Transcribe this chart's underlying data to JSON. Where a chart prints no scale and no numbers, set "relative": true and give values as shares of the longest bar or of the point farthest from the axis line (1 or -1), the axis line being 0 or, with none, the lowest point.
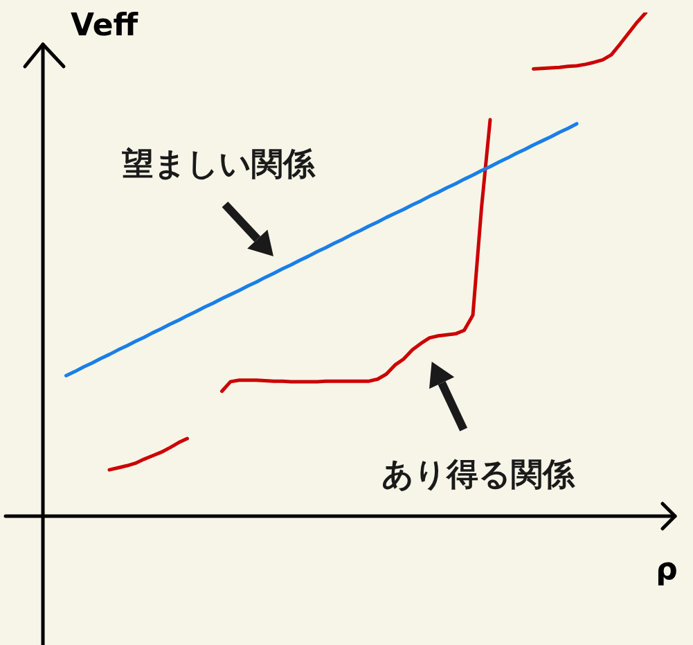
{
  "chart_data": {
    "type": "line",
    "relative": true,
    "xlabel": "ρ",
    "ylabel": "Veff",
    "legend": false,
    "marker": "none",
    "line_style": "solid",
    "categories": [
      null,
      null,
      null,
      null,
      null,
      null,
      null,
      null,
      null,
      null,
      null,
      null,
      null,
      null,
      null,
      null,
      null,
      null,
      null,
      null,
      null,
      null,
      null,
      null,
      null,
      null,
      null,
      null,
      null,
      null,
      null,
      null,
      null,
      null,
      null,
      null,
      null,
      null,
      null,
      null,
      null,
      null,
      null,
      null,
      null,
      null,
      null,
      null,
      null,
      null,
      null,
      null,
      null,
      null,
      null,
      null,
      null,
      null,
      null,
      null,
      null,
      null,
      null,
      null,
      null,
      null,
      null,
      null,
      null
    ],
    "series": [
      {
        "color": "#1a7fe6",
        "values": [
          null,
          0.279,
          0.287,
          0.296,
          0.304,
          0.313,
          0.321,
          0.33,
          0.338,
          0.347,
          0.355,
          0.364,
          0.372,
          0.381,
          0.389,
          0.398,
          0.406,
          0.415,
          0.423,
          0.432,
          0.44,
          0.448,
          0.457,
          0.465,
          0.474,
          0.482,
          0.491,
          0.499,
          0.508,
          0.516,
          0.525,
          0.533,
          0.542,
          0.55,
          0.559,
          0.567,
          0.576,
          0.584,
          0.593,
          0.601,
          0.609,
          0.618,
          0.626,
          0.635,
          0.643,
          0.652,
          0.66,
          0.669,
          0.677,
          0.686,
          0.694,
          0.703,
          0.711,
          0.72,
          0.728,
          0.737,
          0.745,
          0.753,
          0.762,
          0.77,
          0.779,
          null,
          null,
          null,
          null,
          null,
          null,
          null,
          null
        ]
      },
      {
        "color": "#cc0000",
        "values": [
          null,
          null,
          null,
          null,
          null,
          null,
          0.092,
          0.096,
          0.1,
          0.105,
          0.113,
          0.12,
          0.127,
          0.136,
          0.146,
          0.154,
          null,
          null,
          null,
          null,
          null,
          null,
          null,
          null,
          null,
          null,
          null,
          null,
          null,
          null,
          null,
          null,
          null,
          null,
          null,
          null,
          null,
          null,
          null,
          null,
          null,
          null,
          null,
          null,
          null,
          null,
          null,
          null,
          null,
          null,
          null,
          null,
          null,
          null,
          null,
          null,
          null,
          null,
          null,
          null,
          null,
          null,
          null,
          null,
          null,
          null,
          null,
          null,
          null
        ]
      },
      {
        "color": "#cc0000",
        "values": [
          null,
          null,
          null,
          null,
          null,
          null,
          null,
          null,
          null,
          null,
          null,
          null,
          null,
          null,
          null,
          null,
          null,
          null,
          null,
          0.248,
          0.267,
          0.27,
          0.27,
          0.27,
          0.269,
          0.268,
          0.268,
          0.267,
          0.267,
          0.267,
          0.267,
          0.268,
          0.268,
          0.268,
          0.268,
          0.268,
          0.268,
          0.272,
          0.282,
          0.3,
          0.312,
          0.33,
          0.343,
          0.354,
          0.358,
          0.36,
          0.362,
          0.369,
          0.399,
          0.612,
          0.787,
          null,
          null,
          null,
          null,
          null,
          null,
          null,
          null,
          null,
          null,
          null,
          null,
          null,
          null,
          null,
          null,
          null,
          null
        ]
      },
      {
        "color": "#cc0000",
        "values": [
          null,
          null,
          null,
          null,
          null,
          null,
          null,
          null,
          null,
          null,
          null,
          null,
          null,
          null,
          null,
          null,
          null,
          null,
          null,
          null,
          null,
          null,
          null,
          null,
          null,
          null,
          null,
          null,
          null,
          null,
          null,
          null,
          null,
          null,
          null,
          null,
          null,
          null,
          null,
          null,
          null,
          null,
          null,
          null,
          null,
          null,
          null,
          null,
          null,
          null,
          null,
          null,
          null,
          null,
          null,
          0.888,
          0.889,
          0.89,
          0.891,
          0.893,
          0.894,
          0.897,
          0.901,
          0.906,
          0.916,
          0.937,
          0.959,
          0.981,
          1.0
        ]
      }
    ],
    "annotations": [
      "望ましい関係",
      "あり得る関係"
    ]
  }
}
